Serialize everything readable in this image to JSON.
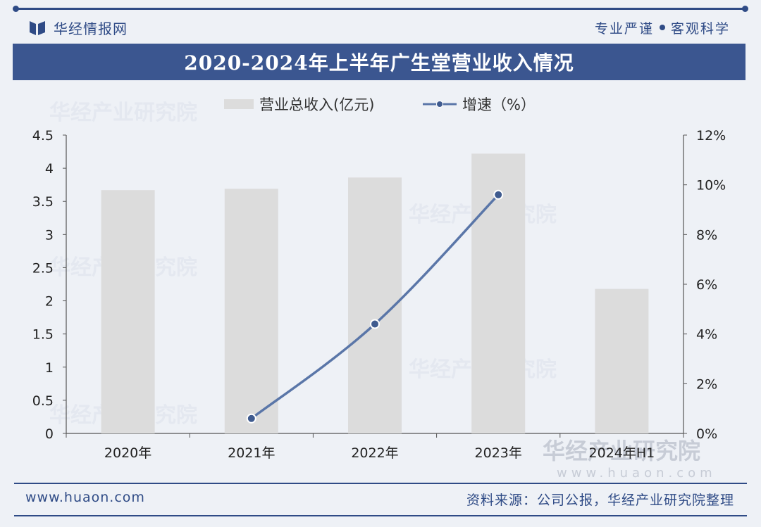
{
  "header": {
    "brand": "华经情报网",
    "tagline_left": "专业严谨",
    "tagline_right": "客观科学",
    "title": "2020-2024年上半年广生堂营业收入情况"
  },
  "watermark": "华经产业研究院",
  "watermark_url": "www.huaon.com",
  "footer": {
    "url": "www.huaon.com",
    "source": "资料来源：公司公报，华经产业研究院整理"
  },
  "colors": {
    "brand": "#2f4b86",
    "bar": "#dcdcdc",
    "line": "#5a76a8",
    "marker_fill": "#3f5b8f"
  },
  "chart_data": {
    "type": "bar",
    "categories": [
      "2020年",
      "2021年",
      "2022年",
      "2023年",
      "2024年H1"
    ],
    "series": [
      {
        "name": "营业总收入(亿元)",
        "type": "bar",
        "axis": "left",
        "values": [
          3.67,
          3.69,
          3.86,
          4.22,
          2.18
        ]
      },
      {
        "name": "增速（%）",
        "type": "line",
        "axis": "right",
        "values": [
          null,
          0.6,
          4.4,
          9.6,
          null
        ]
      }
    ],
    "left_axis": {
      "ylim": [
        0,
        4.5
      ],
      "ticks": [
        "0",
        "0.5",
        "1",
        "1.5",
        "2",
        "2.5",
        "3",
        "3.5",
        "4",
        "4.5"
      ]
    },
    "right_axis": {
      "ylim": [
        0,
        12
      ],
      "ticks": [
        "0%",
        "2%",
        "4%",
        "6%",
        "8%",
        "10%",
        "12%"
      ]
    },
    "legend_position": "top-center",
    "grid": false
  }
}
